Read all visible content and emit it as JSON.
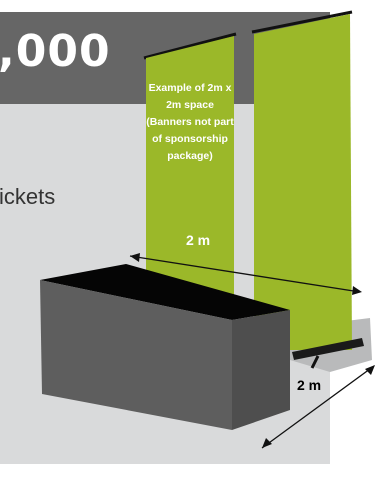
{
  "header": {
    "price": ",000"
  },
  "body": {
    "tickets": "ickets"
  },
  "illustration": {
    "banner_note": "Example of 2m x 2m space (Banners not part of sponsorship package)",
    "width_label": "2 m",
    "depth_label": "2 m"
  },
  "colors": {
    "header_bg": "#666666",
    "panel_bg": "#d9dadb",
    "banner_green": "#9bb829",
    "table_top": "#050505",
    "table_side": "#5e5e5e"
  }
}
